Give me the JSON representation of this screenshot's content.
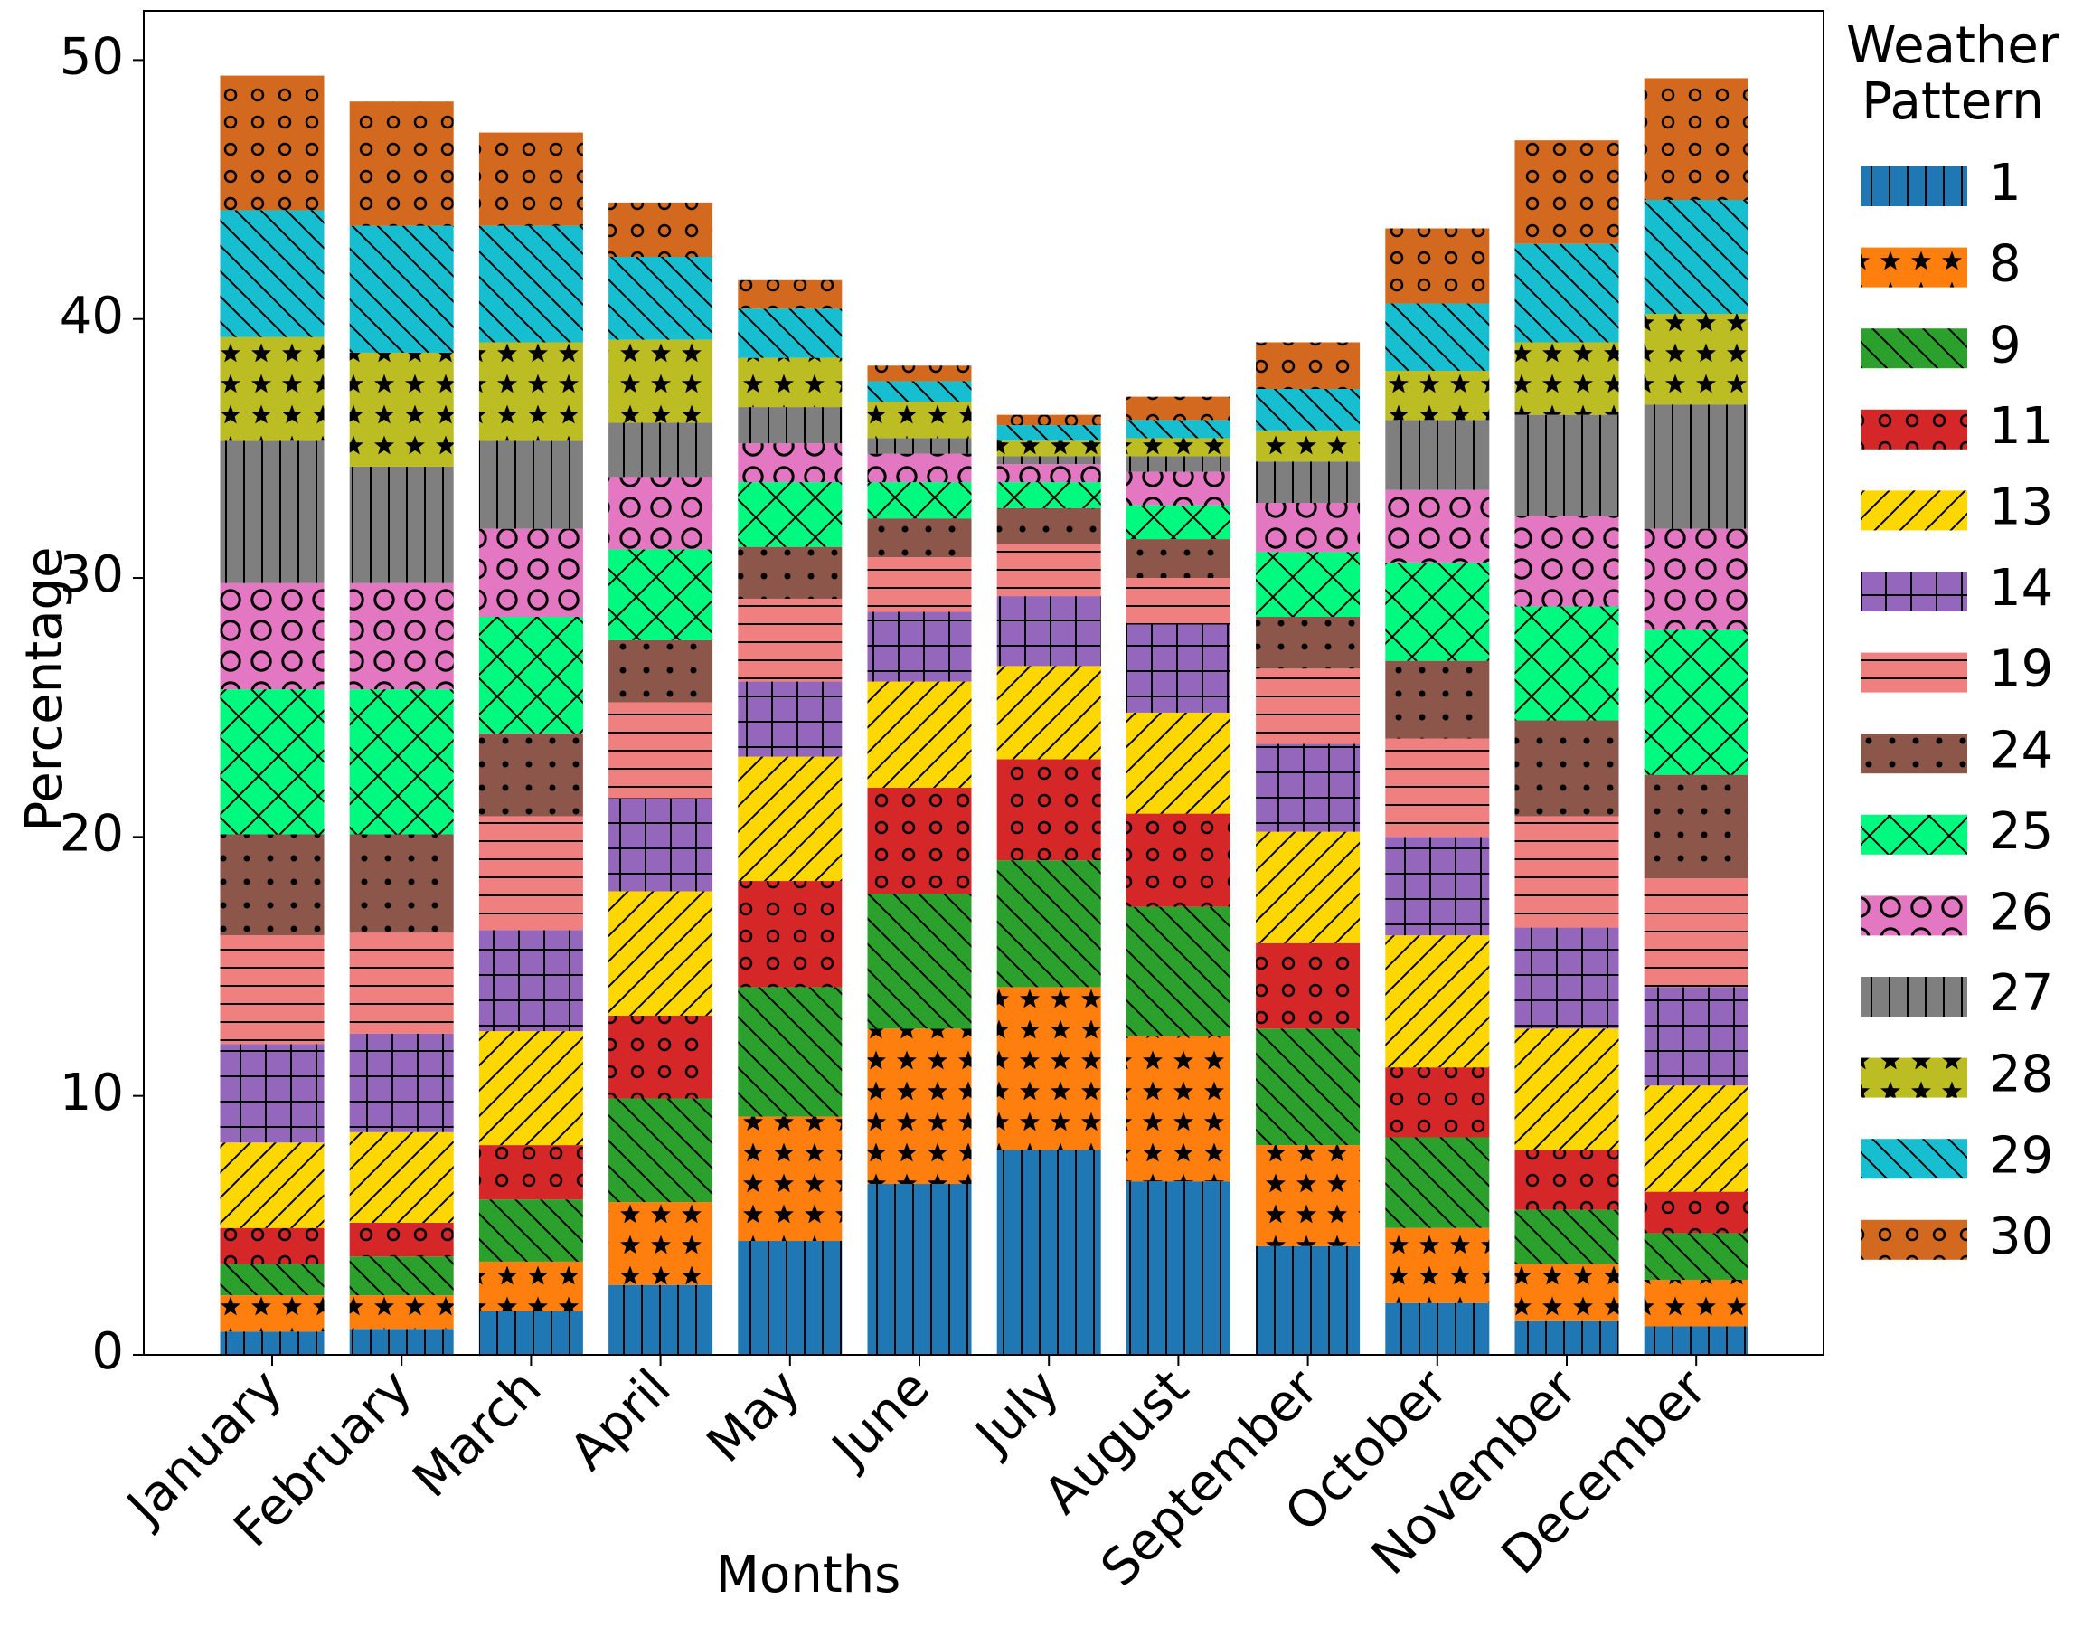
{
  "chart_data": {
    "type": "stacked_bar",
    "xlabel": "Months",
    "ylabel": "Percentage",
    "legend_title": "Weather Pattern",
    "legend_position": "outside right",
    "categories": [
      "January",
      "February",
      "March",
      "April",
      "May",
      "June",
      "July",
      "August",
      "September",
      "October",
      "November",
      "December"
    ],
    "ylim": [
      0,
      51.9
    ],
    "yticks": [
      0,
      10,
      20,
      30,
      40,
      50
    ],
    "series": [
      {
        "name": "1",
        "color": "#1f77b4",
        "hatch": "|",
        "values": [
          0.9,
          1.0,
          1.7,
          2.7,
          4.4,
          6.6,
          7.9,
          6.7,
          4.2,
          2.0,
          1.3,
          1.1
        ]
      },
      {
        "name": "8",
        "color": "#ff7f0e",
        "hatch": "*",
        "values": [
          1.4,
          1.3,
          1.9,
          3.2,
          4.8,
          6.0,
          6.3,
          5.6,
          3.9,
          2.9,
          2.2,
          1.8
        ]
      },
      {
        "name": "9",
        "color": "#2ca02c",
        "hatch": "\\",
        "values": [
          1.2,
          1.5,
          2.4,
          4.0,
          5.0,
          5.2,
          4.9,
          5.0,
          4.5,
          3.5,
          2.1,
          1.8
        ]
      },
      {
        "name": "11",
        "color": "#d62728",
        "hatch": "o",
        "values": [
          1.4,
          1.3,
          2.1,
          3.2,
          4.1,
          4.1,
          3.9,
          3.6,
          3.3,
          2.7,
          2.3,
          1.6
        ]
      },
      {
        "name": "13",
        "color": "#ffd700",
        "hatch": "/",
        "values": [
          3.3,
          3.5,
          4.4,
          4.8,
          4.8,
          4.1,
          3.6,
          3.9,
          4.3,
          5.1,
          4.7,
          4.1
        ]
      },
      {
        "name": "14",
        "color": "#9467bd",
        "hatch": "+",
        "values": [
          3.8,
          3.8,
          3.9,
          3.6,
          2.9,
          2.7,
          2.7,
          3.4,
          3.4,
          3.8,
          3.9,
          3.8
        ]
      },
      {
        "name": "19",
        "color": "#f08080",
        "hatch": "-",
        "values": [
          4.2,
          3.9,
          4.4,
          3.7,
          3.2,
          2.1,
          2.0,
          1.8,
          2.9,
          3.8,
          4.3,
          4.2
        ]
      },
      {
        "name": "24",
        "color": "#8c564b",
        "hatch": ".",
        "values": [
          3.9,
          3.8,
          3.2,
          2.4,
          2.0,
          1.5,
          1.4,
          1.5,
          2.0,
          3.0,
          3.7,
          4.0
        ]
      },
      {
        "name": "25",
        "color": "#00fa7f",
        "hatch": "x",
        "values": [
          5.6,
          5.6,
          4.5,
          3.5,
          2.5,
          1.4,
          1.0,
          1.3,
          2.5,
          3.8,
          4.4,
          5.6
        ]
      },
      {
        "name": "26",
        "color": "#e377c2",
        "hatch": "O",
        "values": [
          4.1,
          4.1,
          3.4,
          2.8,
          1.5,
          1.1,
          0.7,
          1.3,
          1.9,
          2.8,
          3.5,
          3.9
        ]
      },
      {
        "name": "27",
        "color": "#7f7f7f",
        "hatch": "|",
        "values": [
          5.5,
          4.5,
          3.4,
          2.1,
          1.4,
          0.6,
          0.3,
          0.6,
          1.6,
          2.7,
          3.9,
          4.8
        ]
      },
      {
        "name": "28",
        "color": "#bcbd22",
        "hatch": "*",
        "values": [
          4.0,
          4.4,
          3.8,
          3.2,
          1.9,
          1.4,
          0.6,
          0.7,
          1.2,
          1.9,
          2.8,
          3.5
        ]
      },
      {
        "name": "29",
        "color": "#17becf",
        "hatch": "\\",
        "values": [
          4.9,
          4.9,
          4.5,
          3.2,
          1.9,
          0.8,
          0.6,
          0.7,
          1.6,
          2.6,
          3.8,
          4.4
        ]
      },
      {
        "name": "30",
        "color": "#d2691e",
        "hatch": "o",
        "values": [
          5.2,
          4.8,
          3.6,
          2.1,
          1.1,
          0.6,
          0.4,
          0.9,
          1.8,
          2.9,
          4.0,
          4.7
        ]
      }
    ]
  }
}
